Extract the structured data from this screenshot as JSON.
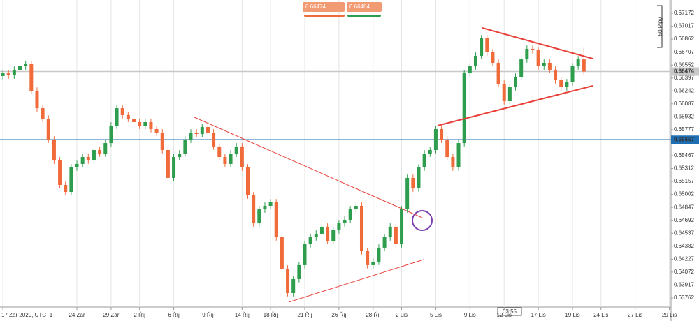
{
  "chart_data": {
    "type": "candlestick",
    "up_color": "#2e9e4e",
    "down_color": "#f06a3a",
    "ylim": [
      0.63653,
      0.67331
    ],
    "yticks": [
      0.67172,
      0.67017,
      0.66862,
      0.66707,
      0.66552,
      0.66397,
      0.66242,
      0.66087,
      0.65932,
      0.65777,
      0.65622,
      0.65467,
      0.65312,
      0.65157,
      0.65002,
      0.64847,
      0.64692,
      0.64537,
      0.64382,
      0.64227,
      0.64072,
      0.63917,
      0.63762
    ],
    "xlim": [
      -0.5,
      117.3
    ],
    "xticks": [
      {
        "value": 0,
        "label": "17 Zář 2020, UTC+1"
      },
      {
        "value": 13,
        "label": "24 Zář"
      },
      {
        "value": 19,
        "label": "29 Zář"
      },
      {
        "value": 24,
        "label": "2 Říj"
      },
      {
        "value": 30,
        "label": "6 Říj"
      },
      {
        "value": 36,
        "label": "9 Říj"
      },
      {
        "value": 42,
        "label": "14 Říj"
      },
      {
        "value": 47,
        "label": "18 Říj"
      },
      {
        "value": 53,
        "label": "21 Říj"
      },
      {
        "value": 59,
        "label": "26 Říj"
      },
      {
        "value": 65,
        "label": "28 Říj"
      },
      {
        "value": 70,
        "label": "2 Lis"
      },
      {
        "value": 76,
        "label": "5 Lis"
      },
      {
        "value": 82,
        "label": "9 Lis"
      },
      {
        "value": 88,
        "label": "12 Lis"
      },
      {
        "value": 94,
        "label": "17 Lis"
      },
      {
        "value": 100,
        "label": "19 Lis"
      },
      {
        "value": 105,
        "label": "24 Lis"
      },
      {
        "value": 111,
        "label": "27 Lis"
      },
      {
        "value": 117,
        "label": "29 Lis"
      }
    ],
    "grid": true,
    "price_lines": [
      {
        "value": 0.66474,
        "color": "#c8c8c8"
      },
      {
        "value": 0.65657,
        "color": "#1f6fb2"
      }
    ],
    "open": [
      0.6642,
      0.66453,
      0.66428,
      0.66495,
      0.66537,
      0.66562,
      0.66244,
      0.66035,
      0.6591,
      0.65659,
      0.65409,
      0.65116,
      0.65032,
      0.65325,
      0.65367,
      0.6545,
      0.65409,
      0.65534,
      0.65492,
      0.65617,
      0.65826,
      0.66035,
      0.65952,
      0.6591,
      0.65868,
      0.65826,
      0.65868,
      0.65785,
      0.65743,
      0.65534,
      0.652,
      0.6545,
      0.65492,
      0.65659,
      0.65743,
      0.65726,
      0.6581,
      0.65743,
      0.65576,
      0.6545,
      0.65367,
      0.65492,
      0.65576,
      0.65325,
      0.64991,
      0.64656,
      0.64823,
      0.64865,
      0.64907,
      0.64489,
      0.64113,
      0.6382,
      0.63988,
      0.64155,
      0.64406,
      0.64489,
      0.64531,
      0.64615,
      0.64447,
      0.64573,
      0.64656,
      0.64698,
      0.64823,
      0.64865,
      0.64322,
      0.64155,
      0.64197,
      0.64364,
      0.64489,
      0.64615,
      0.64406,
      0.64823,
      0.652,
      0.65074,
      0.65325,
      0.65492,
      0.65534,
      0.65785,
      0.65659,
      0.6545,
      0.65325,
      0.65617,
      0.66453,
      0.66537,
      0.66662,
      0.66871,
      0.66704,
      0.66579,
      0.66328,
      0.66119,
      0.66286,
      0.66411,
      0.6662,
      0.66746,
      0.66729,
      0.66537,
      0.66579,
      0.66495,
      0.6637,
      0.66286,
      0.66345,
      0.66537,
      0.6662
    ],
    "high": [
      0.66493,
      0.66493,
      0.66535,
      0.66577,
      0.66602,
      0.66602,
      0.66284,
      0.66075,
      0.6595,
      0.65699,
      0.65449,
      0.65156,
      0.65365,
      0.65407,
      0.6549,
      0.6549,
      0.65574,
      0.65574,
      0.65657,
      0.65866,
      0.66075,
      0.66075,
      0.65992,
      0.6595,
      0.65908,
      0.65908,
      0.65908,
      0.65825,
      0.65783,
      0.65574,
      0.6549,
      0.65532,
      0.65699,
      0.65783,
      0.65783,
      0.6585,
      0.6585,
      0.65783,
      0.65616,
      0.6549,
      0.65532,
      0.65616,
      0.65616,
      0.65365,
      0.65031,
      0.64863,
      0.64905,
      0.64947,
      0.64947,
      0.64529,
      0.64153,
      0.64028,
      0.64195,
      0.64446,
      0.64529,
      0.64571,
      0.64655,
      0.64655,
      0.64613,
      0.64696,
      0.64738,
      0.64863,
      0.64905,
      0.64905,
      0.64362,
      0.64237,
      0.64404,
      0.64529,
      0.64655,
      0.64655,
      0.64863,
      0.6524,
      0.6524,
      0.65365,
      0.65532,
      0.65574,
      0.65825,
      0.65825,
      0.65699,
      0.6549,
      0.65657,
      0.66493,
      0.66577,
      0.66702,
      0.66911,
      0.66911,
      0.66744,
      0.66619,
      0.66368,
      0.66326,
      0.66451,
      0.6666,
      0.66786,
      0.66786,
      0.66769,
      0.66619,
      0.66619,
      0.66535,
      0.6641,
      0.66385,
      0.66577,
      0.6666,
      0.6676
    ],
    "low": [
      0.6638,
      0.66388,
      0.66388,
      0.66455,
      0.66497,
      0.66204,
      0.65995,
      0.6587,
      0.65619,
      0.65369,
      0.65076,
      0.64992,
      0.64992,
      0.65285,
      0.65327,
      0.65369,
      0.65369,
      0.65452,
      0.65452,
      0.65577,
      0.65786,
      0.65912,
      0.6587,
      0.65828,
      0.65786,
      0.65786,
      0.65745,
      0.65703,
      0.65494,
      0.6516,
      0.6516,
      0.6541,
      0.65452,
      0.65619,
      0.65686,
      0.65686,
      0.65703,
      0.65536,
      0.6541,
      0.65327,
      0.65327,
      0.65452,
      0.65285,
      0.64951,
      0.64616,
      0.64616,
      0.64783,
      0.64825,
      0.64449,
      0.64073,
      0.6378,
      0.6378,
      0.63948,
      0.64115,
      0.64366,
      0.64449,
      0.64491,
      0.64407,
      0.64407,
      0.64533,
      0.64616,
      0.64658,
      0.64783,
      0.64282,
      0.64115,
      0.64115,
      0.64157,
      0.64324,
      0.64449,
      0.64366,
      0.64366,
      0.64783,
      0.65034,
      0.65034,
      0.65285,
      0.65452,
      0.65494,
      0.65619,
      0.6541,
      0.65285,
      0.65285,
      0.65577,
      0.66413,
      0.66497,
      0.66622,
      0.66664,
      0.66539,
      0.66288,
      0.66079,
      0.66079,
      0.66246,
      0.66371,
      0.6658,
      0.66689,
      0.66497,
      0.66497,
      0.66455,
      0.6633,
      0.66246,
      0.66246,
      0.66305,
      0.66497,
      0.66434
    ],
    "close": [
      0.66453,
      0.66428,
      0.66495,
      0.66537,
      0.66562,
      0.66244,
      0.66035,
      0.6591,
      0.65659,
      0.65409,
      0.65116,
      0.65032,
      0.65325,
      0.65367,
      0.6545,
      0.65409,
      0.65534,
      0.65492,
      0.65617,
      0.65826,
      0.66035,
      0.65952,
      0.6591,
      0.65868,
      0.65826,
      0.65868,
      0.65785,
      0.65743,
      0.65534,
      0.652,
      0.6545,
      0.65492,
      0.65659,
      0.65743,
      0.65726,
      0.6581,
      0.65743,
      0.65576,
      0.6545,
      0.65367,
      0.65492,
      0.65576,
      0.65325,
      0.64991,
      0.64656,
      0.64823,
      0.64865,
      0.64907,
      0.64489,
      0.64113,
      0.6382,
      0.63988,
      0.64155,
      0.64406,
      0.64489,
      0.64531,
      0.64615,
      0.64447,
      0.64573,
      0.64656,
      0.64698,
      0.64823,
      0.64865,
      0.64322,
      0.64155,
      0.64197,
      0.64364,
      0.64489,
      0.64615,
      0.64406,
      0.64823,
      0.652,
      0.65074,
      0.65325,
      0.65492,
      0.65534,
      0.65785,
      0.65659,
      0.6545,
      0.65325,
      0.65617,
      0.66453,
      0.66537,
      0.66662,
      0.66871,
      0.66704,
      0.66579,
      0.66328,
      0.66119,
      0.66286,
      0.66411,
      0.6662,
      0.66746,
      0.66729,
      0.66537,
      0.66579,
      0.66495,
      0.6637,
      0.66286,
      0.66345,
      0.66537,
      0.6662,
      0.66474
    ],
    "sell_button": "0.66474",
    "buy_button": "0.66484",
    "scale_label": "50 Pipy",
    "time_label": "03:55"
  }
}
